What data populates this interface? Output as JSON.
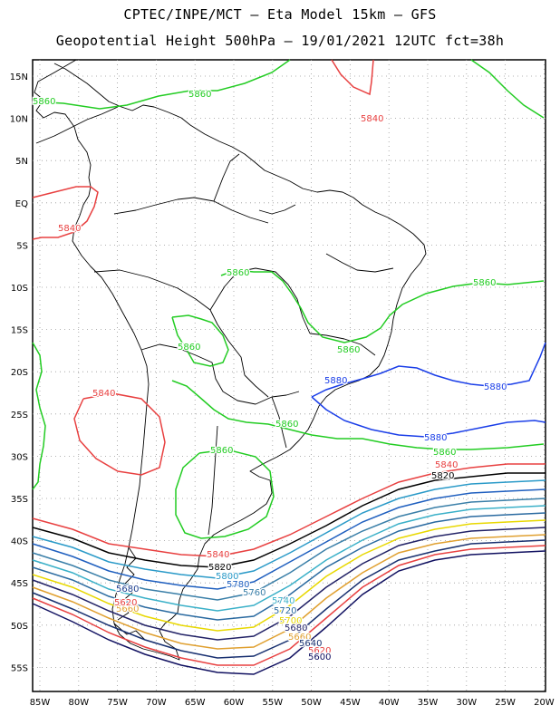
{
  "header": {
    "line1": "CPTEC/INPE/MCT –  Eta Model 15km – GFS",
    "line2": "Geopotential Height 500hPa – 19/01/2021 12UTC fct=38h"
  },
  "axes": {
    "lat_labels": [
      "15N",
      "10N",
      "5N",
      "EQ",
      "5S",
      "10S",
      "15S",
      "20S",
      "25S",
      "30S",
      "35S",
      "40S",
      "45S",
      "50S",
      "55S"
    ],
    "lon_labels": [
      "85W",
      "80W",
      "75W",
      "70W",
      "65W",
      "60W",
      "55W",
      "50W",
      "45W",
      "40W",
      "35W",
      "30W",
      "25W",
      "20W"
    ]
  },
  "contour_labels": [
    {
      "id": "l5860a",
      "text": "5860",
      "color": "#22cc22"
    },
    {
      "id": "l5860b",
      "text": "5860",
      "color": "#22cc22"
    },
    {
      "id": "l5840a",
      "text": "5840",
      "color": "#e84040"
    },
    {
      "id": "l5840b",
      "text": "5840",
      "color": "#e84040"
    },
    {
      "id": "l5860c",
      "text": "5860",
      "color": "#22cc22"
    },
    {
      "id": "l5860d",
      "text": "5860",
      "color": "#22cc22"
    },
    {
      "id": "l5860e",
      "text": "5860",
      "color": "#22cc22"
    },
    {
      "id": "l5860f",
      "text": "5860",
      "color": "#22cc22"
    },
    {
      "id": "l5880a",
      "text": "5880",
      "color": "#1a3ee8"
    },
    {
      "id": "l5880b",
      "text": "5880",
      "color": "#1a3ee8"
    },
    {
      "id": "l5840c",
      "text": "5840",
      "color": "#e84040"
    },
    {
      "id": "l5860g",
      "text": "5860",
      "color": "#22cc22"
    },
    {
      "id": "l5860h",
      "text": "5860",
      "color": "#22cc22"
    },
    {
      "id": "l5880c",
      "text": "5880",
      "color": "#1a3ee8"
    },
    {
      "id": "l5860i",
      "text": "5860",
      "color": "#22cc22"
    },
    {
      "id": "l5840d",
      "text": "5840",
      "color": "#e84040"
    },
    {
      "id": "l5820a",
      "text": "5820",
      "color": "#000000"
    },
    {
      "id": "l5840e",
      "text": "5840",
      "color": "#e84040"
    },
    {
      "id": "l5820b",
      "text": "5820",
      "color": "#000000"
    },
    {
      "id": "l5800",
      "text": "5800",
      "color": "#2a9ac8"
    },
    {
      "id": "l5780",
      "text": "5780",
      "color": "#1f5fbf"
    },
    {
      "id": "l5760",
      "text": "5760",
      "color": "#3a7fa8"
    },
    {
      "id": "l5740",
      "text": "5740",
      "color": "#3ab0c8"
    },
    {
      "id": "l5720",
      "text": "5720",
      "color": "#2a6aa0"
    },
    {
      "id": "l5700",
      "text": "5700",
      "color": "#e8d800"
    },
    {
      "id": "l5680",
      "text": "5680",
      "color": "#222266"
    },
    {
      "id": "l5660",
      "text": "5660",
      "color": "#e0a030"
    },
    {
      "id": "l5640",
      "text": "5640",
      "color": "#183070"
    },
    {
      "id": "l5620",
      "text": "5620",
      "color": "#e84040"
    },
    {
      "id": "l5600",
      "text": "5600",
      "color": "#101060"
    },
    {
      "id": "l5680w",
      "text": "5680",
      "color": "#1f3f8f"
    },
    {
      "id": "l5660w",
      "text": "5660",
      "color": "#e0a030"
    },
    {
      "id": "l5620w",
      "text": "5620",
      "color": "#e84040"
    }
  ]
}
